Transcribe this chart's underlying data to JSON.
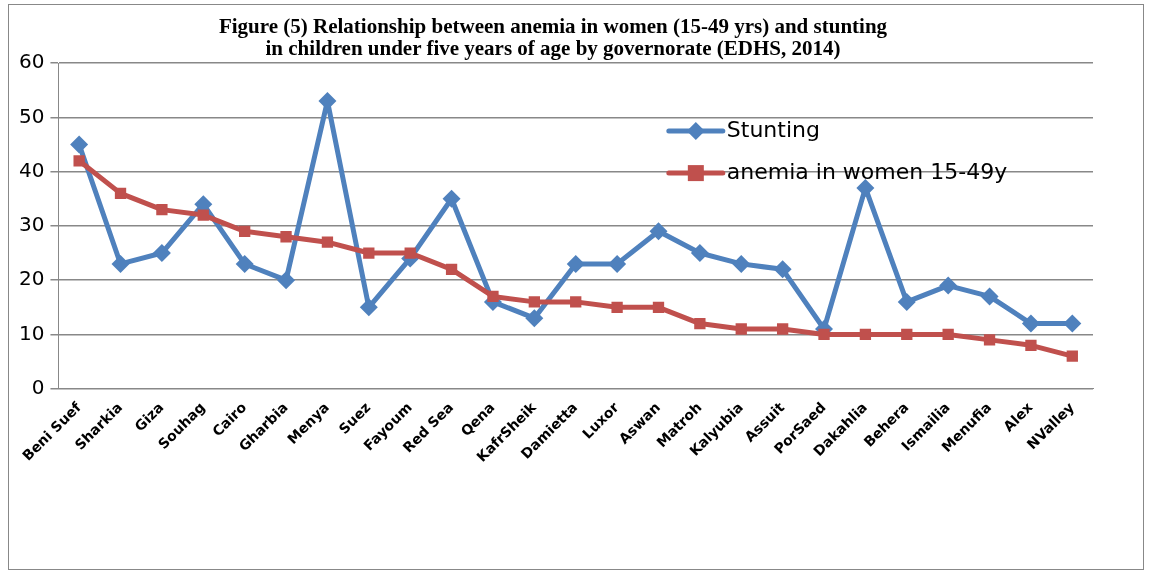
{
  "chart_data": {
    "type": "line",
    "title": "Figure (5) Relationship between anemia in women (15-49 yrs) and stunting in children under five years of age by governorate (EDHS, 2014)",
    "categories": [
      "Beni Suef",
      "Sharkia",
      "Giza",
      "Souhag",
      "Cairo",
      "Gharbia",
      "Menya",
      "Suez",
      "Fayoum",
      "Red Sea",
      "Qena",
      "KafrSheik",
      "Damietta",
      "Luxor",
      "Aswan",
      "Matroh",
      "Kalyubia",
      "Assuit",
      "PorSaed",
      "Dakahlia",
      "Behera",
      "Ismailia",
      "Menufia",
      "Alex",
      "NValley"
    ],
    "series": [
      {
        "name": "Stunting",
        "color": "#4f81bd",
        "marker": "diamond",
        "values": [
          45,
          23,
          25,
          34,
          23,
          20,
          53,
          15,
          24,
          35,
          16,
          13,
          23,
          23,
          29,
          25,
          23,
          22,
          11,
          37,
          16,
          19,
          17,
          12,
          12
        ]
      },
      {
        "name": "anemia in women 15-49y",
        "color": "#c0504d",
        "marker": "square",
        "values": [
          42,
          36,
          33,
          32,
          29,
          28,
          27,
          25,
          25,
          22,
          17,
          16,
          16,
          15,
          15,
          12,
          11,
          11,
          10,
          10,
          10,
          10,
          9,
          8,
          6
        ]
      }
    ],
    "ylim": [
      0,
      60
    ],
    "yticks": [
      0,
      10,
      20,
      30,
      40,
      50,
      60
    ],
    "grid": "y",
    "legend": "top right",
    "line_style": "solid"
  }
}
